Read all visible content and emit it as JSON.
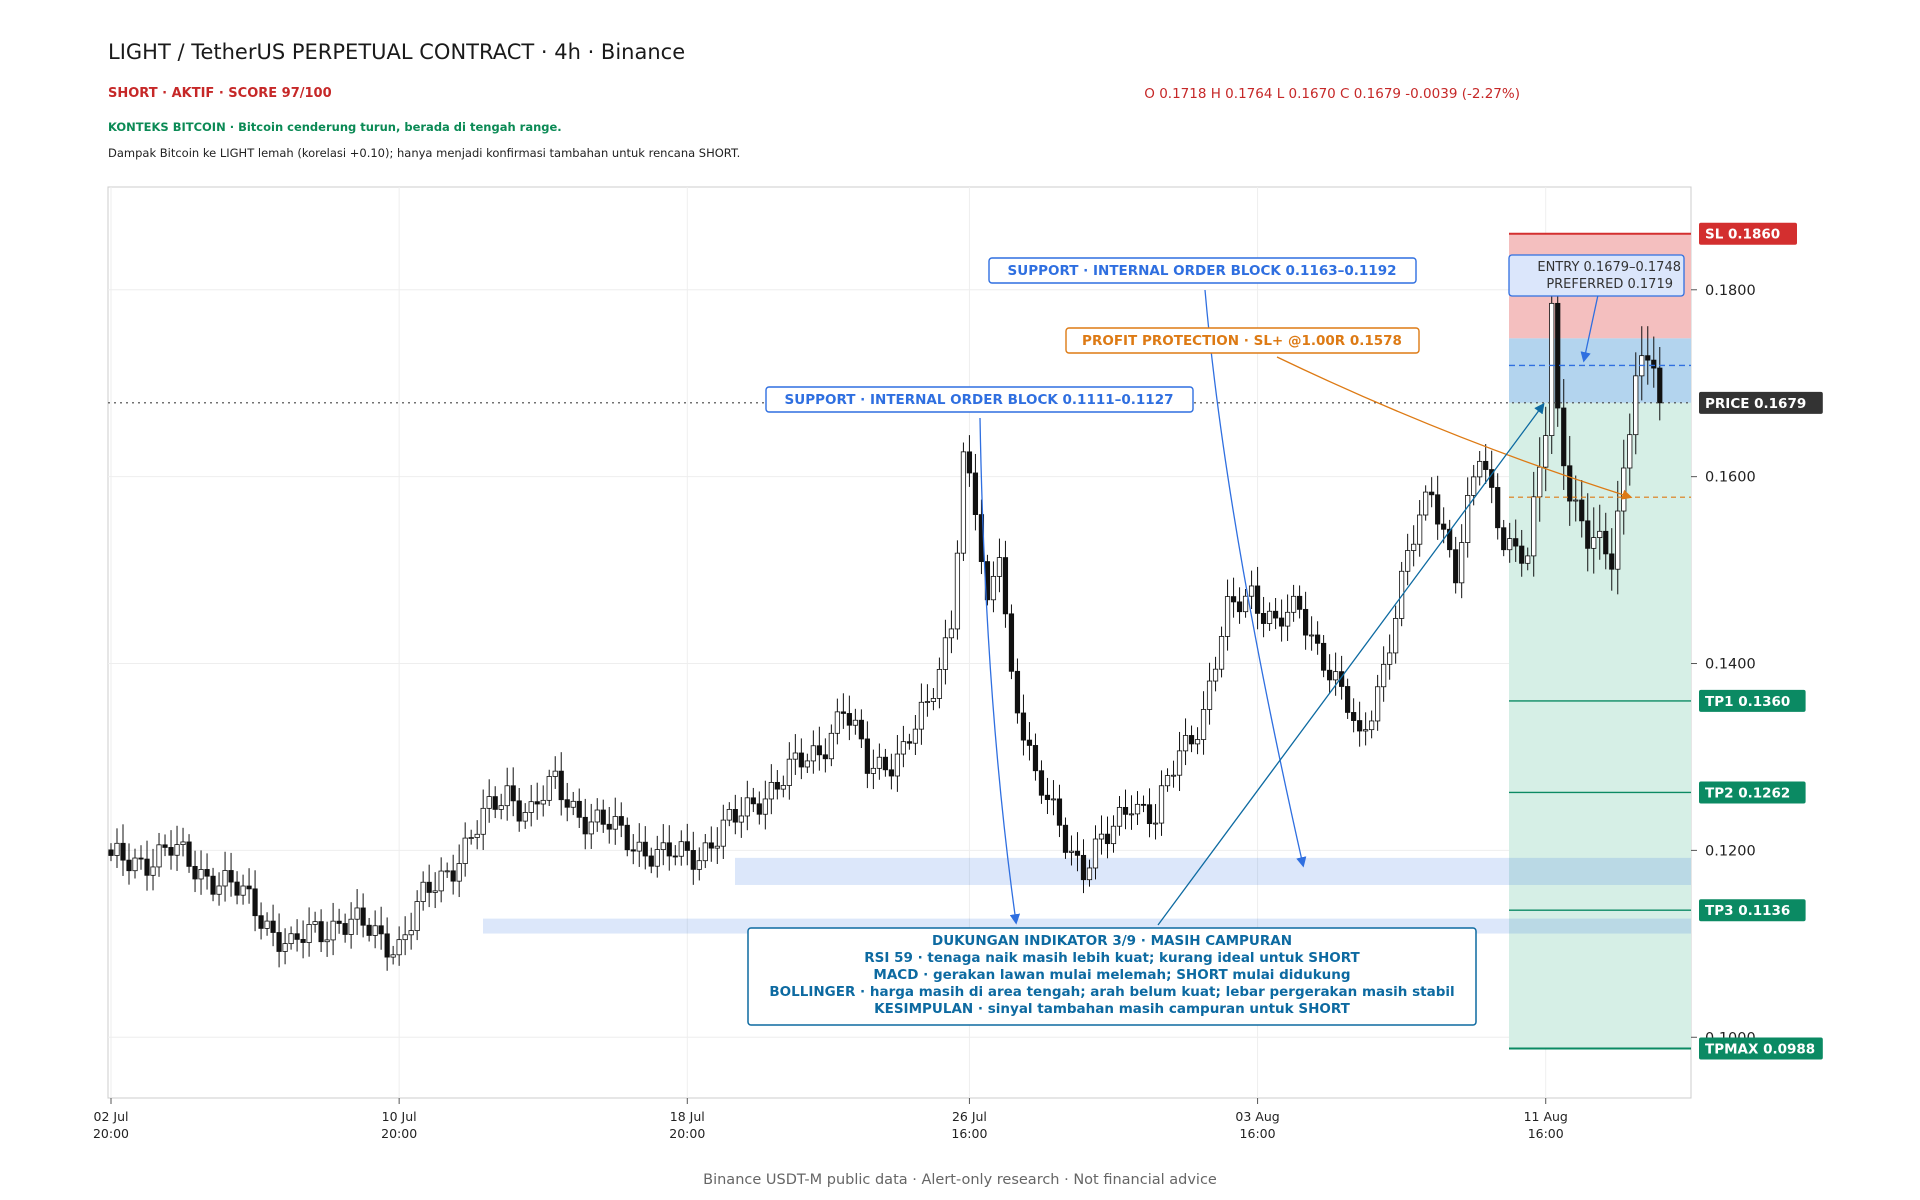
{
  "header": {
    "title": "LIGHT / TetherUS PERPETUAL CONTRACT · 4h · Binance",
    "status": "SHORT · AKTIF · SCORE 97/100",
    "ohlc": "O 0.1718   H 0.1764   L 0.1670   C 0.1679   -0.0039 (-2.27%)",
    "btc_context": "KONTEKS BITCOIN · Bitcoin cenderung turun, berada di tengah range.",
    "btc_note": "Dampak Bitcoin ke LIGHT lemah (korelasi +0.10); hanya menjadi konfirmasi tambahan untuk rencana SHORT."
  },
  "footer": "Binance USDT-M public data · Alert-only research · Not financial advice",
  "colors": {
    "bull": "#ffffff",
    "bear": "#111111",
    "sl": "#d32f2f",
    "tp": "#0b8a63",
    "support": "#2f6fe0",
    "protection": "#dd7a14",
    "indicator": "#0d6aa1",
    "price_tag": "#333333"
  },
  "chart_data": {
    "type": "candlestick",
    "timeframe": "4h",
    "x_ticks": [
      {
        "date": "02 Jul",
        "time": "20:00",
        "i": 0
      },
      {
        "date": "10 Jul",
        "time": "20:00",
        "i": 48
      },
      {
        "date": "18 Jul",
        "time": "20:00",
        "i": 96
      },
      {
        "date": "26 Jul",
        "time": "16:00",
        "i": 143
      },
      {
        "date": "03 Aug",
        "time": "16:00",
        "i": 191
      },
      {
        "date": "11 Aug",
        "time": "16:00",
        "i": 239
      }
    ],
    "y_ticks": [
      "0.1000",
      "0.1200",
      "0.1400",
      "0.1600",
      "0.1800"
    ],
    "ylim": [
      0.0935,
      0.191
    ],
    "grid": true,
    "anchors": [
      [
        0,
        0.1185
      ],
      [
        10,
        0.1198
      ],
      [
        18,
        0.1168
      ],
      [
        24,
        0.114
      ],
      [
        30,
        0.1092
      ],
      [
        34,
        0.1115
      ],
      [
        38,
        0.1125
      ],
      [
        48,
        0.11
      ],
      [
        52,
        0.1145
      ],
      [
        56,
        0.118
      ],
      [
        62,
        0.123
      ],
      [
        66,
        0.1265
      ],
      [
        70,
        0.124
      ],
      [
        74,
        0.127
      ],
      [
        80,
        0.123
      ],
      [
        86,
        0.1215
      ],
      [
        92,
        0.119
      ],
      [
        98,
        0.12
      ],
      [
        104,
        0.123
      ],
      [
        108,
        0.126
      ],
      [
        112,
        0.1275
      ],
      [
        118,
        0.131
      ],
      [
        122,
        0.135
      ],
      [
        126,
        0.129
      ],
      [
        132,
        0.1305
      ],
      [
        136,
        0.135
      ],
      [
        140,
        0.145
      ],
      [
        142,
        0.162
      ],
      [
        144,
        0.156
      ],
      [
        146,
        0.145
      ],
      [
        148,
        0.153
      ],
      [
        150,
        0.139
      ],
      [
        154,
        0.127
      ],
      [
        158,
        0.123
      ],
      [
        162,
        0.118
      ],
      [
        166,
        0.121
      ],
      [
        170,
        0.126
      ],
      [
        174,
        0.123
      ],
      [
        178,
        0.1305
      ],
      [
        182,
        0.135
      ],
      [
        186,
        0.145
      ],
      [
        190,
        0.148
      ],
      [
        194,
        0.144
      ],
      [
        198,
        0.1455
      ],
      [
        202,
        0.141
      ],
      [
        206,
        0.135
      ],
      [
        208,
        0.131
      ],
      [
        212,
        0.14
      ],
      [
        216,
        0.151
      ],
      [
        220,
        0.159
      ],
      [
        224,
        0.15
      ],
      [
        228,
        0.162
      ],
      [
        232,
        0.154
      ],
      [
        236,
        0.151
      ],
      [
        239,
        0.165
      ],
      [
        240,
        0.178
      ],
      [
        241,
        0.167
      ],
      [
        243,
        0.159
      ],
      [
        246,
        0.153
      ],
      [
        248,
        0.152
      ],
      [
        250,
        0.151
      ],
      [
        252,
        0.161
      ],
      [
        254,
        0.172
      ],
      [
        257,
        0.172
      ],
      [
        258,
        0.1679
      ]
    ],
    "levels": [
      {
        "name": "SL",
        "label": "SL  0.1860",
        "value": 0.186
      },
      {
        "name": "PRICE",
        "label": "PRICE  0.1679",
        "value": 0.1679
      },
      {
        "name": "TP1",
        "label": "TP1  0.1360",
        "value": 0.136
      },
      {
        "name": "TP2",
        "label": "TP2  0.1262",
        "value": 0.1262
      },
      {
        "name": "TP3",
        "label": "TP3  0.1136",
        "value": 0.1136
      },
      {
        "name": "TPMAX",
        "label": "TPMAX  0.0988",
        "value": 0.0988
      }
    ],
    "entry_zone": [
      0.1679,
      0.1748
    ],
    "preferred": 0.1719,
    "protection_level": 0.1578,
    "support_zones": [
      [
        0.1163,
        0.1192
      ],
      [
        0.1111,
        0.1127
      ]
    ],
    "annotations": {
      "entry": [
        "ENTRY  0.1679–0.1748",
        "PREFERRED 0.1719"
      ],
      "support_1": "SUPPORT · INTERNAL ORDER BLOCK  0.1163–0.1192",
      "protection": "PROFIT PROTECTION · SL+ @1.00R  0.1578",
      "support_2": "SUPPORT · INTERNAL ORDER BLOCK  0.1111–0.1127",
      "indicators": [
        "DUKUNGAN INDIKATOR 3/9 · MASIH CAMPURAN",
        "RSI 59 · tenaga naik masih lebih kuat; kurang ideal untuk SHORT",
        "MACD · gerakan lawan mulai melemah; SHORT mulai didukung",
        "BOLLINGER · harga masih di area tengah; arah belum kuat; lebar pergerakan masih stabil",
        "KESIMPULAN · sinyal tambahan masih campuran untuk SHORT"
      ]
    }
  }
}
